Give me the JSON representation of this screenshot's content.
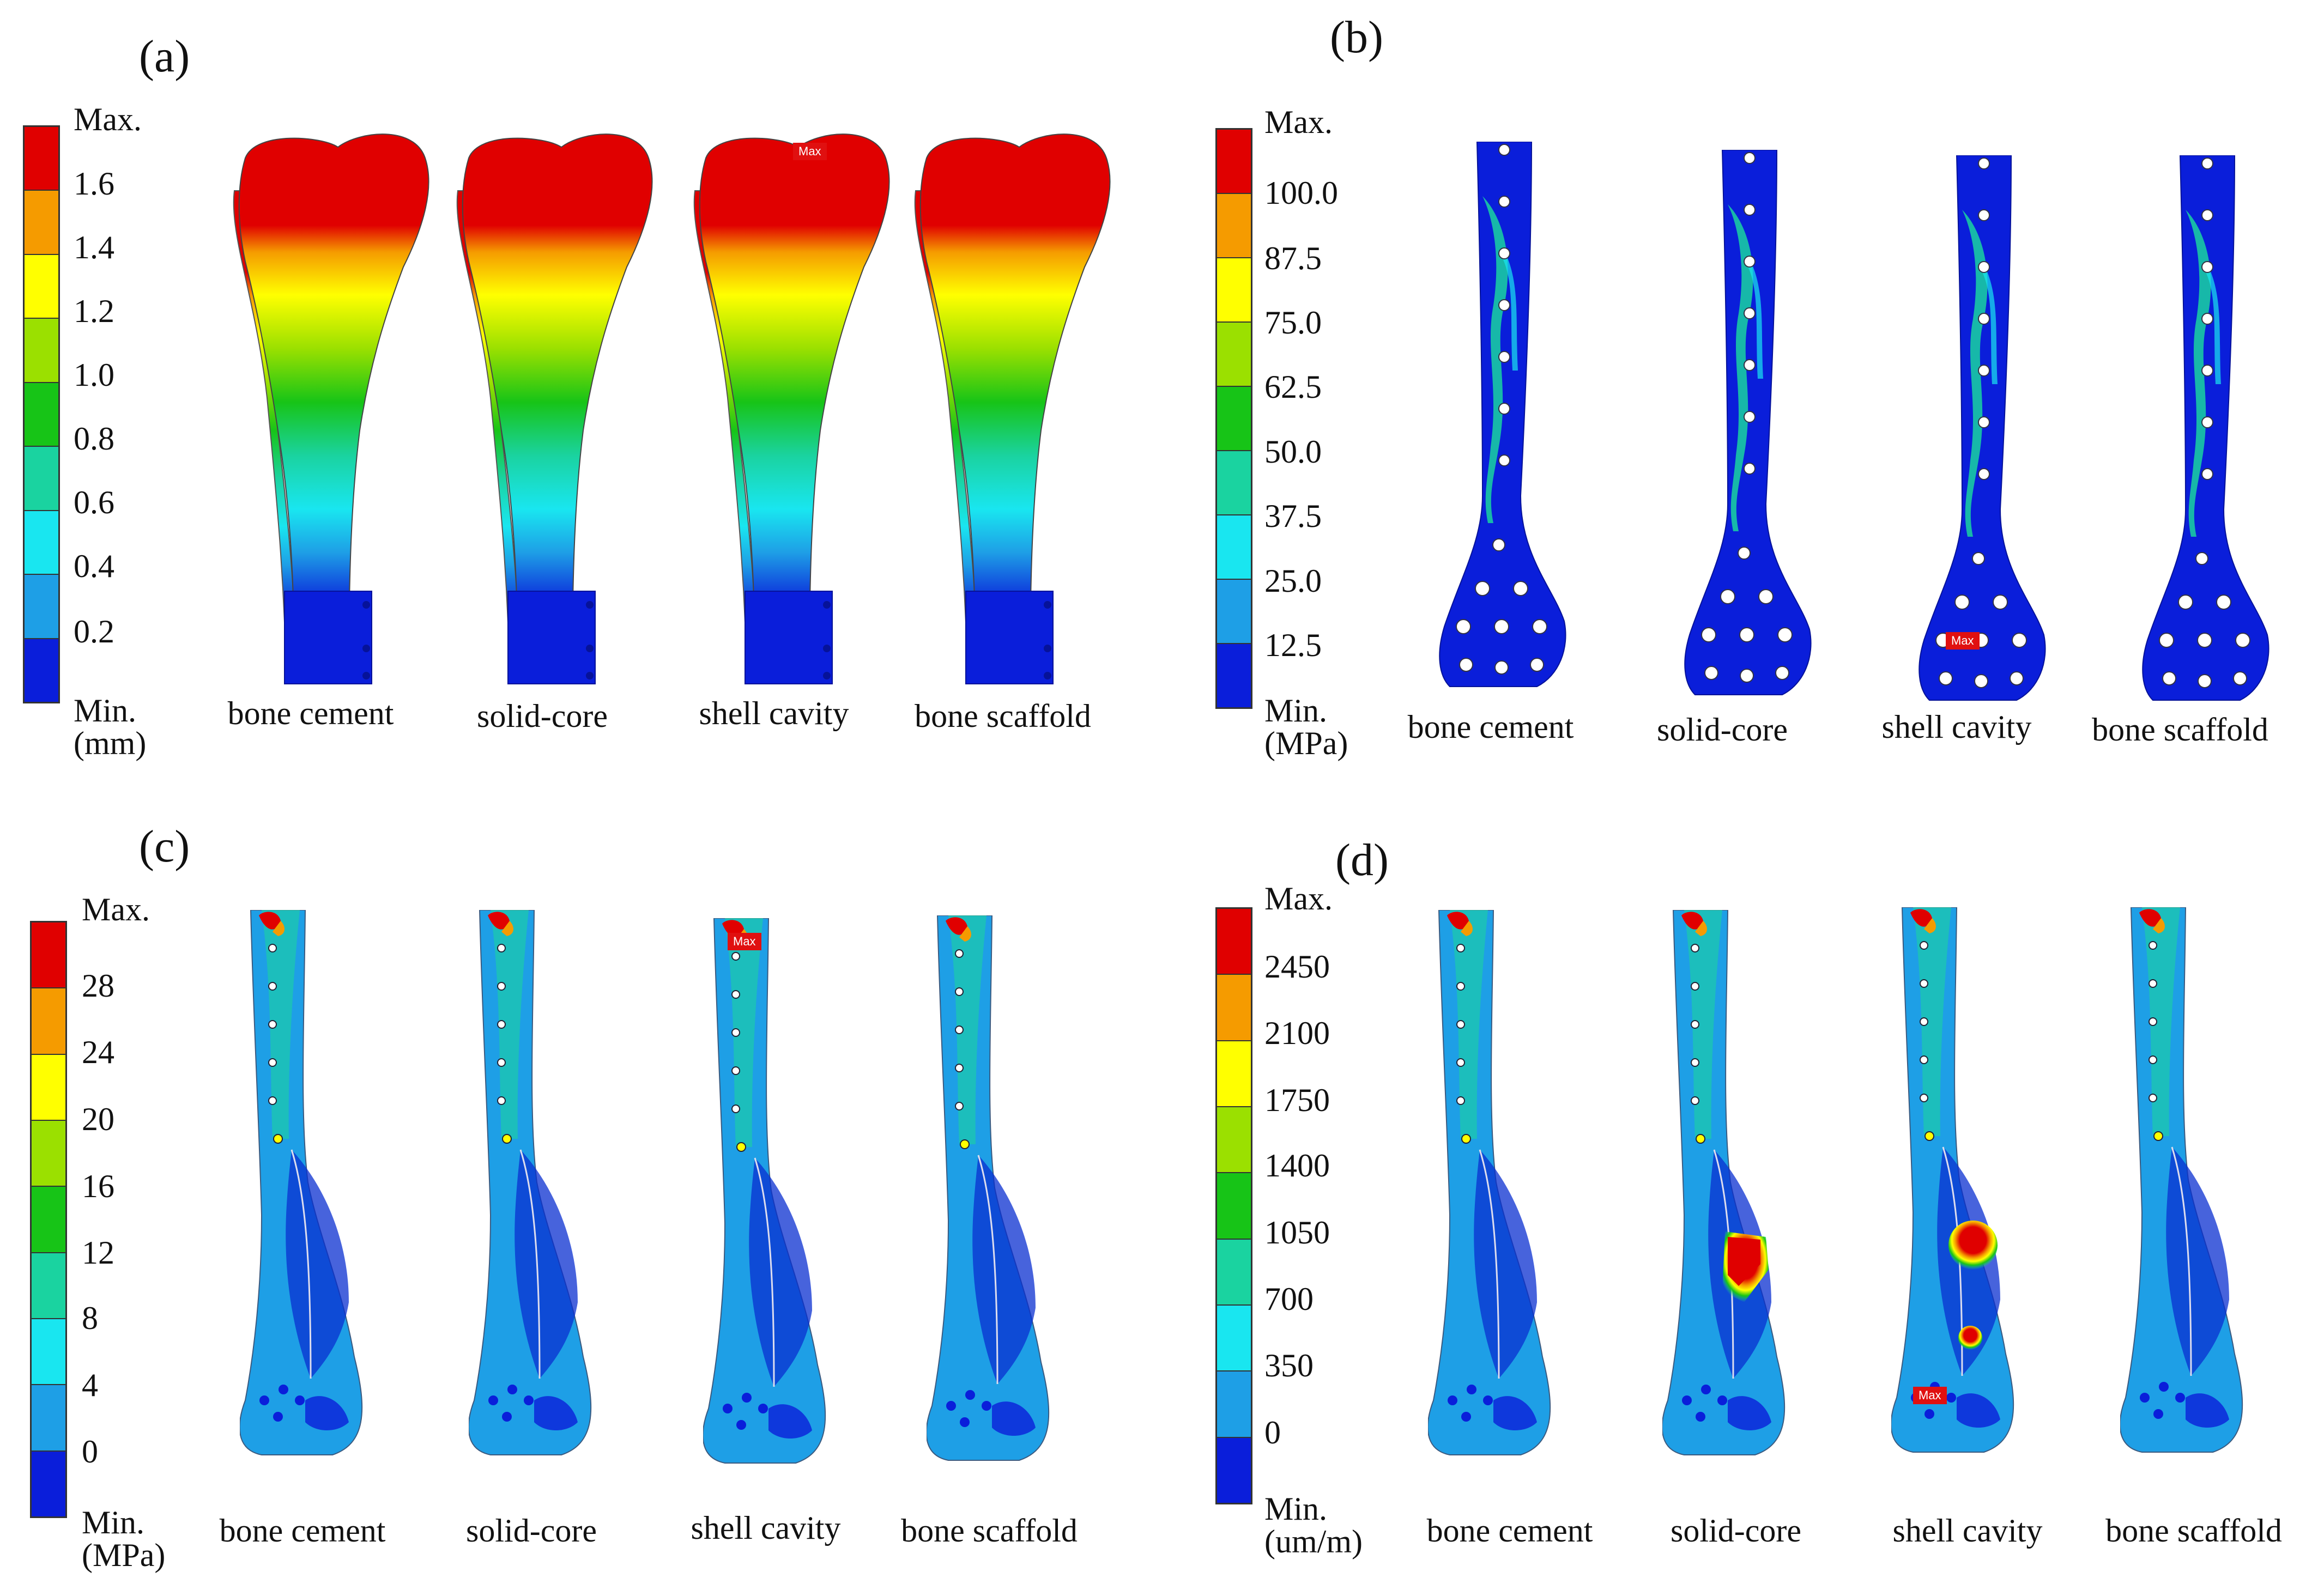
{
  "colors": {
    "scale": [
      "#e00000",
      "#f59b00",
      "#ffff00",
      "#9be000",
      "#17c417",
      "#1ad3a0",
      "#19e6f0",
      "#1e9fe6",
      "#0a1eda"
    ],
    "max_tag": "#e01010"
  },
  "max_tag_text": "Max",
  "panels": [
    {
      "label": "(a)",
      "scale": {
        "top": "Max.",
        "ticks": [
          "1.6",
          "1.4",
          "1.2",
          "1.0",
          "0.8",
          "0.6",
          "0.4",
          "0.2"
        ],
        "bottom": "Min.",
        "unit": "(mm)"
      },
      "captions": [
        "bone cement",
        "solid-core",
        "shell cavity",
        "bone scaffold"
      ]
    },
    {
      "label": "(b)",
      "scale": {
        "top": "Max.",
        "ticks": [
          "100.0",
          "87.5",
          "75.0",
          "62.5",
          "50.0",
          "37.5",
          "25.0",
          "12.5"
        ],
        "bottom": "Min.",
        "unit": "(MPa)"
      },
      "captions": [
        "bone cement",
        "solid-core",
        "shell cavity",
        "bone scaffold"
      ]
    },
    {
      "label": "(c)",
      "scale": {
        "top": "Max.",
        "ticks": [
          "28",
          "24",
          "20",
          "16",
          "12",
          "8",
          "4",
          "0"
        ],
        "bottom": "Min.",
        "unit": "(MPa)"
      },
      "captions": [
        "bone cement",
        "solid-core",
        "shell cavity",
        "bone scaffold"
      ]
    },
    {
      "label": "(d)",
      "scale": {
        "top": "Max.",
        "ticks": [
          "2450",
          "2100",
          "1750",
          "1400",
          "1050",
          "700",
          "350",
          "0"
        ],
        "bottom": "Min.",
        "unit": "(um/m)"
      },
      "captions": [
        "bone cement",
        "solid-core",
        "shell cavity",
        "bone scaffold"
      ]
    }
  ]
}
